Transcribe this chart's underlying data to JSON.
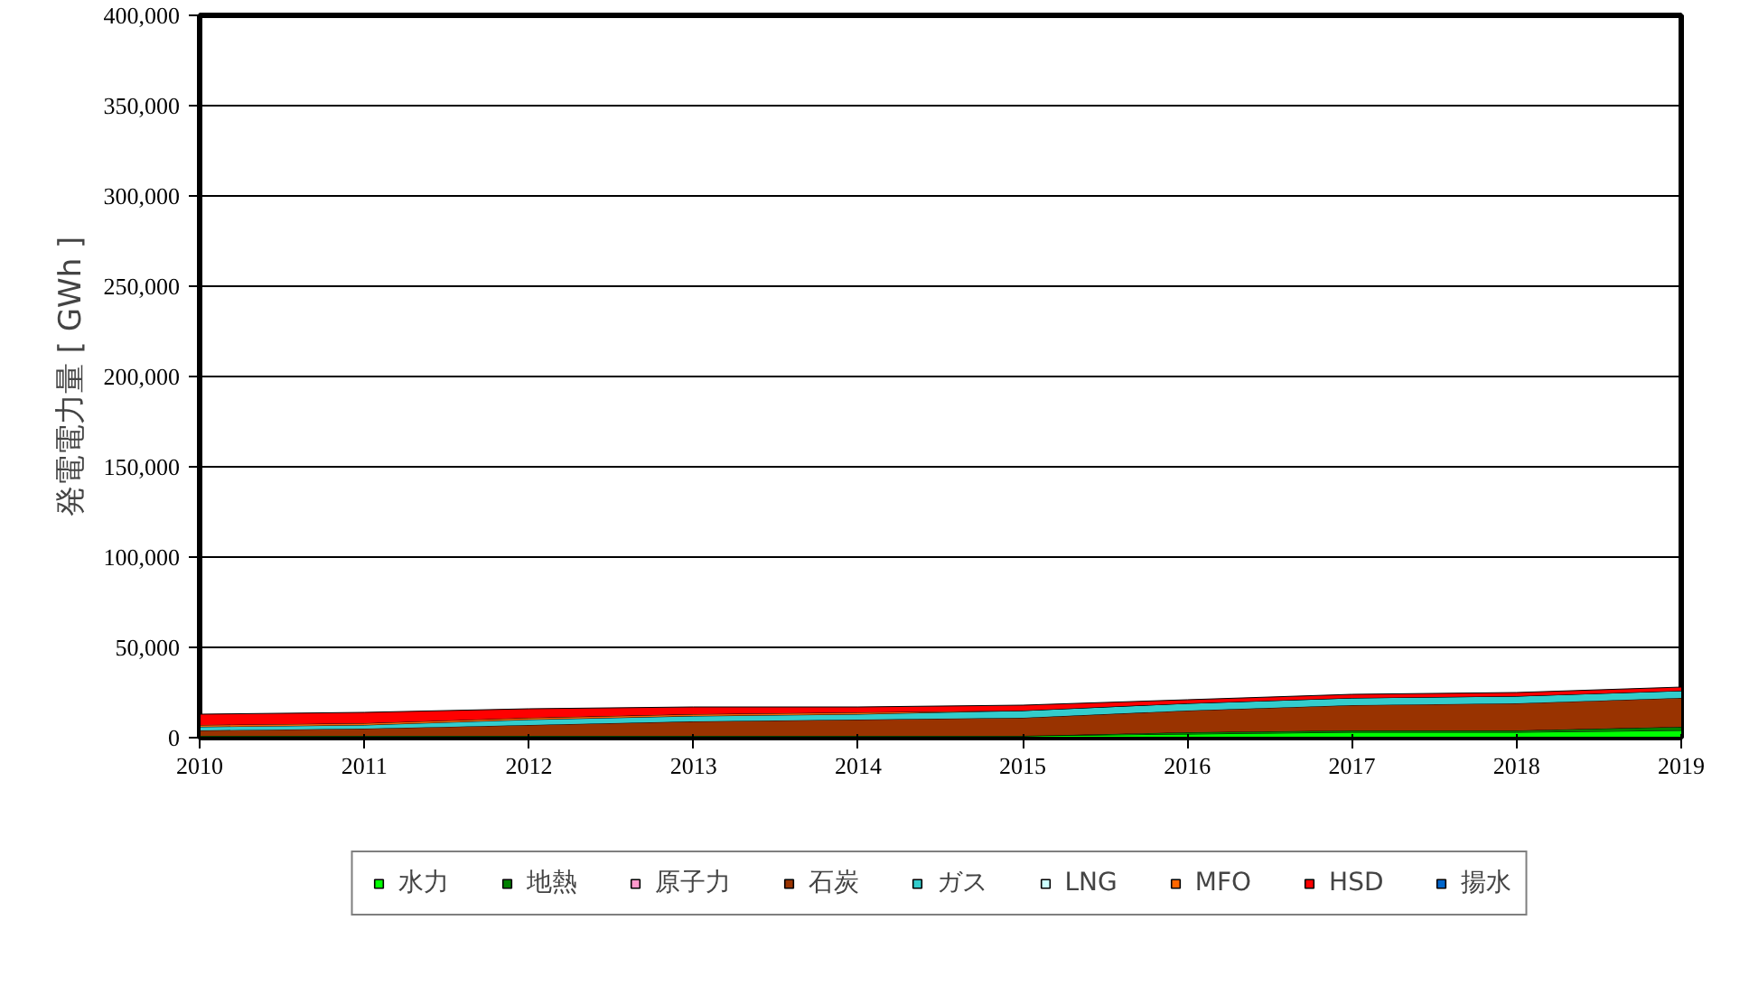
{
  "chart_data": {
    "type": "area",
    "stacked": true,
    "ylabel": "発電電力量 [ GWh ]",
    "x": [
      2010,
      2011,
      2012,
      2013,
      2014,
      2015,
      2016,
      2017,
      2018,
      2019
    ],
    "xlim": [
      2010,
      2019
    ],
    "xticks": [
      2010,
      2011,
      2012,
      2013,
      2014,
      2015,
      2016,
      2017,
      2018,
      2019
    ],
    "ylim": [
      0,
      400000
    ],
    "yticks": [
      {
        "value": 0,
        "label": "0"
      },
      {
        "value": 50000,
        "label": "50,000"
      },
      {
        "value": 100000,
        "label": "100,000"
      },
      {
        "value": 150000,
        "label": "150,000"
      },
      {
        "value": 200000,
        "label": "200,000"
      },
      {
        "value": 250000,
        "label": "250,000"
      },
      {
        "value": 300000,
        "label": "300,000"
      },
      {
        "value": 350000,
        "label": "350,000"
      },
      {
        "value": 400000,
        "label": "400,000"
      }
    ],
    "grid": "y",
    "legend": "bottom",
    "series": [
      {
        "name": "水力",
        "color": "#00ff00",
        "values": [
          1000,
          1000,
          1000,
          1000,
          1000,
          1000,
          2000,
          3000,
          3000,
          4000
        ]
      },
      {
        "name": "地熱",
        "color": "#008000",
        "values": [
          0,
          0,
          0,
          0,
          0,
          0,
          1000,
          1000,
          1000,
          2000
        ]
      },
      {
        "name": "原子力",
        "color": "#ff99cc",
        "values": [
          null,
          null,
          null,
          null,
          null,
          null,
          null,
          null,
          null,
          null
        ]
      },
      {
        "name": "石炭",
        "color": "#993300",
        "values": [
          3000,
          4000,
          6000,
          8000,
          9000,
          10000,
          12000,
          14000,
          15000,
          16000
        ]
      },
      {
        "name": "ガス",
        "color": "#33cccc",
        "values": [
          2000,
          2000,
          3000,
          3000,
          3000,
          4000,
          4000,
          4000,
          4000,
          4000
        ]
      },
      {
        "name": "LNG",
        "color": "#ccffff",
        "values": [
          null,
          null,
          null,
          null,
          null,
          null,
          null,
          null,
          null,
          null
        ]
      },
      {
        "name": "MFO",
        "color": "#ff6600",
        "values": [
          1000,
          1000,
          1000,
          1000,
          1000,
          0,
          0,
          0,
          0,
          0
        ]
      },
      {
        "name": "HSD",
        "color": "#ff0000",
        "values": [
          6000,
          6000,
          5000,
          4000,
          3000,
          3000,
          2000,
          2000,
          2000,
          2000
        ]
      },
      {
        "name": "揚水",
        "color": "#0066cc",
        "values": [
          null,
          null,
          null,
          null,
          null,
          null,
          null,
          null,
          null,
          null
        ]
      }
    ]
  }
}
